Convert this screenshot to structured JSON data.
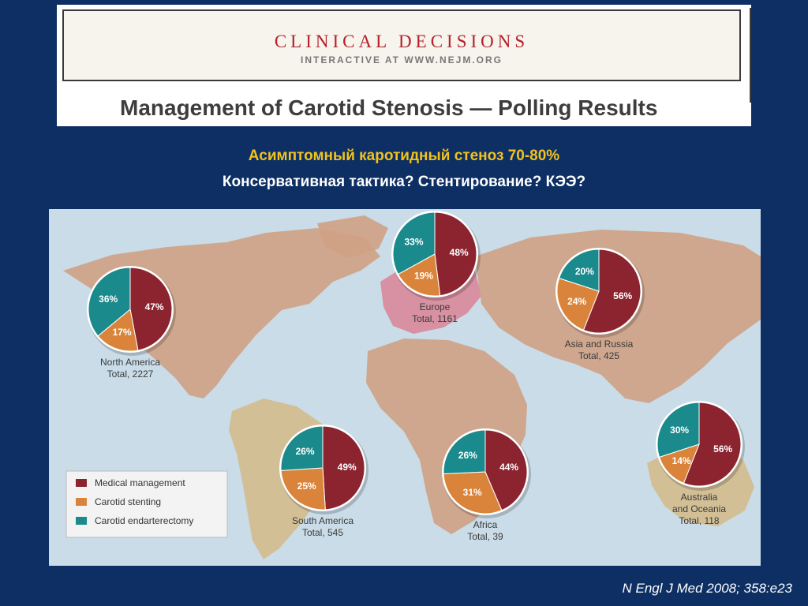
{
  "header": {
    "brand": "CLINICAL DECISIONS",
    "subtitle": "INTERACTIVE AT WWW.NEJM.ORG",
    "title": "Management of Carotid Stenosis — Polling Results"
  },
  "slide": {
    "line1": "Асимптомный каротидный стеноз 70-80%",
    "line2": "Консервативная тактика? Стентирование? КЭЭ?"
  },
  "citation": "N Engl J Med 2008; 358:e23",
  "colors": {
    "medical": "#8c2430",
    "stenting": "#d9843a",
    "endarterectomy": "#1b8a8c",
    "ocean": "#c9dce8",
    "land": "#cfa184"
  },
  "chart_data": {
    "type": "pie",
    "legend": {
      "placement": "bottom-left",
      "entries": [
        "Medical management",
        "Carotid stenting",
        "Carotid endarterectomy"
      ]
    },
    "series_keys": [
      "medical",
      "stenting",
      "endarterectomy"
    ],
    "regions": [
      {
        "id": "north-america",
        "name": "North America",
        "total_label": "Total, 2227",
        "values": [
          47,
          17,
          36
        ],
        "labels": [
          "47%",
          "17%",
          "36%"
        ]
      },
      {
        "id": "europe",
        "name": "Europe",
        "total_label": "Total, 1161",
        "values": [
          48,
          19,
          33
        ],
        "labels": [
          "48%",
          "19%",
          "33%"
        ]
      },
      {
        "id": "asia-russia",
        "name": "Asia and Russia",
        "total_label": "Total, 425",
        "values": [
          56,
          24,
          20
        ],
        "labels": [
          "56%",
          "24%",
          "20%"
        ]
      },
      {
        "id": "south-america",
        "name": "South America",
        "total_label": "Total, 545",
        "values": [
          49,
          25,
          26
        ],
        "labels": [
          "49%",
          "25%",
          "26%"
        ]
      },
      {
        "id": "africa",
        "name": "Africa",
        "total_label": "Total, 39",
        "values": [
          44,
          31,
          26
        ],
        "labels": [
          "44%",
          "31%",
          "26%"
        ]
      },
      {
        "id": "australia-oceania",
        "name": "Australia and Oceania",
        "name_lines": [
          "Australia",
          "and Oceania"
        ],
        "total_label": "Total, 118",
        "values": [
          56,
          14,
          30
        ],
        "labels": [
          "56%",
          "14%",
          "30%"
        ]
      }
    ]
  }
}
